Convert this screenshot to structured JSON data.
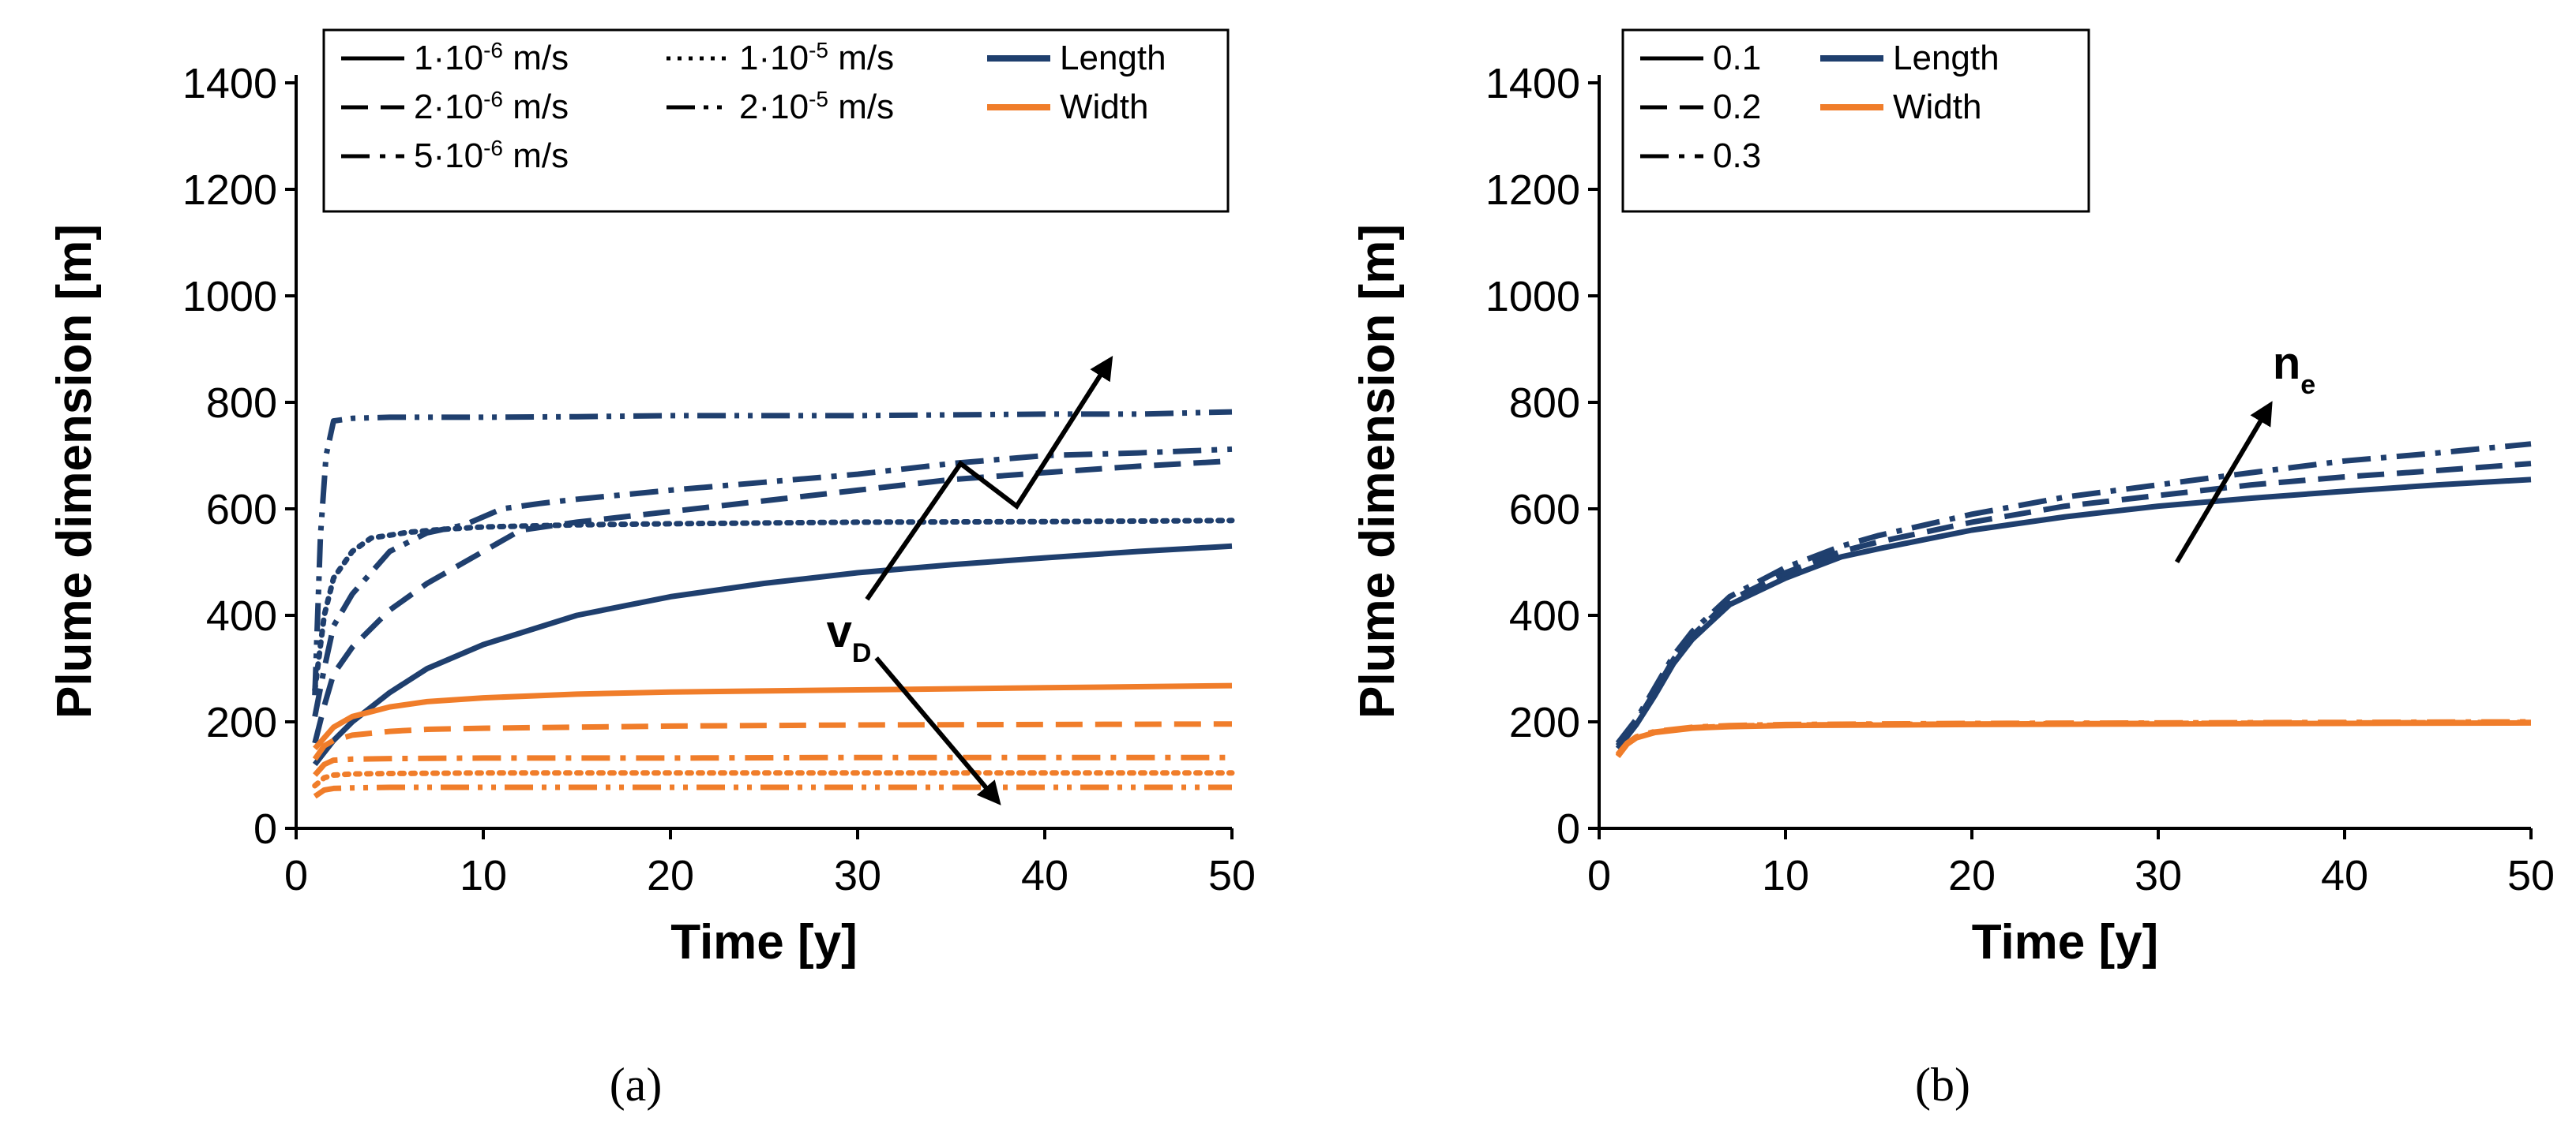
{
  "colors": {
    "length": "#1f3f6e",
    "width": "#f07d2a",
    "axis": "#000000"
  },
  "chart_data": [
    {
      "type": "line",
      "panel": "a",
      "caption": "(a)",
      "xlabel": "Time [y]",
      "ylabel": "Plume dimension [m]",
      "xlim": [
        0,
        50
      ],
      "ylim": [
        0,
        1400
      ],
      "xticks": [
        0,
        10,
        20,
        30,
        40,
        50
      ],
      "yticks": [
        0,
        200,
        400,
        600,
        800,
        1000,
        1200,
        1400
      ],
      "grid": false,
      "legend": {
        "position": "top",
        "styles": [
          {
            "label": "1·10<sup>-6</sup> m/s",
            "dash": "solid"
          },
          {
            "label": "2·10<sup>-6</sup> m/s",
            "dash": "dash"
          },
          {
            "label": "5·10<sup>-6</sup> m/s",
            "dash": "dashdot"
          },
          {
            "label": "1·10<sup>-5</sup> m/s",
            "dash": "dot"
          },
          {
            "label": "2·10<sup>-5</sup> m/s",
            "dash": "dashdotdot"
          }
        ],
        "colors": [
          {
            "label": "Length",
            "key": "length"
          },
          {
            "label": "Width",
            "key": "width"
          }
        ]
      },
      "annotations": [
        {
          "text": "v",
          "sub": "D"
        }
      ],
      "series": [
        {
          "name": "Length 1·10^-6 m/s",
          "color_key": "length",
          "dash": "solid",
          "x": [
            1,
            2,
            3,
            5,
            7,
            10,
            15,
            20,
            25,
            30,
            35,
            40,
            45,
            50
          ],
          "y": [
            120,
            165,
            200,
            255,
            300,
            345,
            400,
            435,
            460,
            480,
            495,
            508,
            520,
            530
          ]
        },
        {
          "name": "Length 2·10^-6 m/s",
          "color_key": "length",
          "dash": "dash",
          "x": [
            1,
            1.5,
            2,
            3,
            5,
            7,
            10,
            12,
            15,
            20,
            25,
            30,
            35,
            40,
            45,
            50
          ],
          "y": [
            160,
            230,
            290,
            340,
            410,
            460,
            520,
            560,
            575,
            595,
            615,
            635,
            655,
            668,
            680,
            690
          ]
        },
        {
          "name": "Length 5·10^-6 m/s",
          "color_key": "length",
          "dash": "dashdot",
          "x": [
            1,
            1.5,
            2,
            3,
            4,
            5,
            7,
            9,
            11,
            13,
            15,
            20,
            25,
            30,
            35,
            40,
            45,
            50
          ],
          "y": [
            210,
            300,
            380,
            440,
            480,
            520,
            555,
            570,
            600,
            610,
            618,
            635,
            650,
            665,
            685,
            700,
            705,
            712
          ]
        },
        {
          "name": "Length 1·10^-5 m/s",
          "color_key": "length",
          "dash": "dot",
          "x": [
            1,
            1.5,
            2,
            3,
            4,
            6,
            8,
            10,
            15,
            20,
            30,
            40,
            50
          ],
          "y": [
            260,
            400,
            470,
            520,
            545,
            556,
            562,
            566,
            570,
            572,
            575,
            576,
            578
          ]
        },
        {
          "name": "Length 2·10^-5 m/s",
          "color_key": "length",
          "dash": "dashdotdot",
          "x": [
            1,
            1.3,
            1.6,
            2,
            3,
            5,
            10,
            15,
            20,
            30,
            40,
            45,
            50
          ],
          "y": [
            250,
            550,
            700,
            765,
            770,
            772,
            772,
            773,
            775,
            775,
            778,
            778,
            782
          ]
        },
        {
          "name": "Width 1·10^-6 m/s",
          "color_key": "width",
          "dash": "solid",
          "x": [
            1,
            2,
            3,
            5,
            7,
            10,
            15,
            20,
            30,
            40,
            50
          ],
          "y": [
            150,
            190,
            210,
            228,
            238,
            245,
            252,
            256,
            260,
            264,
            268
          ]
        },
        {
          "name": "Width 2·10^-6 m/s",
          "color_key": "width",
          "dash": "dash",
          "x": [
            1,
            1.5,
            2,
            3,
            5,
            7,
            10,
            20,
            30,
            40,
            50
          ],
          "y": [
            130,
            155,
            165,
            175,
            182,
            186,
            188,
            192,
            194,
            195,
            196
          ]
        },
        {
          "name": "Width 5·10^-6 m/s",
          "color_key": "width",
          "dash": "dashdot",
          "x": [
            1,
            1.5,
            2,
            3,
            5,
            10,
            20,
            30,
            40,
            50
          ],
          "y": [
            100,
            120,
            128,
            130,
            131,
            132,
            132,
            133,
            133,
            133
          ]
        },
        {
          "name": "Width 1·10^-5 m/s",
          "color_key": "width",
          "dash": "dot",
          "x": [
            1,
            1.5,
            2,
            3,
            5,
            10,
            20,
            30,
            40,
            50
          ],
          "y": [
            80,
            95,
            100,
            102,
            103,
            104,
            104,
            104,
            104,
            104
          ]
        },
        {
          "name": "Width 2·10^-5 m/s",
          "color_key": "width",
          "dash": "dashdotdot",
          "x": [
            1,
            1.5,
            2,
            3,
            5,
            10,
            20,
            30,
            40,
            50
          ],
          "y": [
            60,
            72,
            75,
            76,
            77,
            77,
            77,
            77,
            77,
            77
          ]
        }
      ]
    },
    {
      "type": "line",
      "panel": "b",
      "caption": "(b)",
      "xlabel": "Time [y]",
      "ylabel": "Plume dimension [m]",
      "xlim": [
        0,
        50
      ],
      "ylim": [
        0,
        1400
      ],
      "xticks": [
        0,
        10,
        20,
        30,
        40,
        50
      ],
      "yticks": [
        0,
        200,
        400,
        600,
        800,
        1000,
        1200,
        1400
      ],
      "grid": false,
      "legend": {
        "position": "top-left",
        "styles": [
          {
            "label": "0.1",
            "dash": "solid"
          },
          {
            "label": "0.2",
            "dash": "dash"
          },
          {
            "label": "0.3",
            "dash": "dashdot"
          }
        ],
        "colors": [
          {
            "label": "Length",
            "key": "length"
          },
          {
            "label": "Width",
            "key": "width"
          }
        ]
      },
      "annotations": [
        {
          "text": "n",
          "sub": "e"
        }
      ],
      "series": [
        {
          "name": "Length 0.1",
          "color_key": "length",
          "dash": "solid",
          "x": [
            1,
            2,
            3,
            4,
            5,
            7,
            10,
            13,
            15,
            20,
            25,
            30,
            35,
            40,
            45,
            50
          ],
          "y": [
            150,
            195,
            250,
            310,
            355,
            420,
            470,
            510,
            525,
            560,
            585,
            605,
            620,
            633,
            645,
            655
          ]
        },
        {
          "name": "Length 0.2",
          "color_key": "length",
          "dash": "dash",
          "x": [
            1,
            2,
            3,
            4,
            5,
            7,
            10,
            13,
            15,
            20,
            25,
            30,
            35,
            40,
            45,
            50
          ],
          "y": [
            155,
            200,
            258,
            318,
            362,
            428,
            480,
            520,
            538,
            575,
            605,
            625,
            645,
            660,
            672,
            685
          ]
        },
        {
          "name": "Length 0.3",
          "color_key": "length",
          "dash": "dashdot",
          "x": [
            1,
            2,
            3,
            4,
            5,
            7,
            10,
            13,
            15,
            20,
            25,
            30,
            35,
            40,
            45,
            50
          ],
          "y": [
            160,
            205,
            265,
            325,
            370,
            435,
            490,
            530,
            550,
            590,
            622,
            645,
            668,
            690,
            705,
            722
          ]
        },
        {
          "name": "Width 0.1",
          "color_key": "width",
          "dash": "solid",
          "x": [
            1,
            1.5,
            2,
            3,
            5,
            7,
            10,
            20,
            30,
            40,
            50
          ],
          "y": [
            135,
            158,
            170,
            180,
            188,
            191,
            193,
            195,
            196,
            197,
            198
          ]
        },
        {
          "name": "Width 0.2",
          "color_key": "width",
          "dash": "dash",
          "x": [
            1,
            1.5,
            2,
            3,
            5,
            7,
            10,
            20,
            30,
            40,
            50
          ],
          "y": [
            137,
            159,
            171,
            181,
            189,
            192,
            194,
            196,
            197,
            198,
            199
          ]
        },
        {
          "name": "Width 0.3",
          "color_key": "width",
          "dash": "dashdot",
          "x": [
            1,
            1.5,
            2,
            3,
            5,
            7,
            10,
            20,
            30,
            40,
            50
          ],
          "y": [
            139,
            160,
            172,
            182,
            190,
            193,
            195,
            197,
            198,
            199,
            200
          ]
        }
      ]
    }
  ]
}
